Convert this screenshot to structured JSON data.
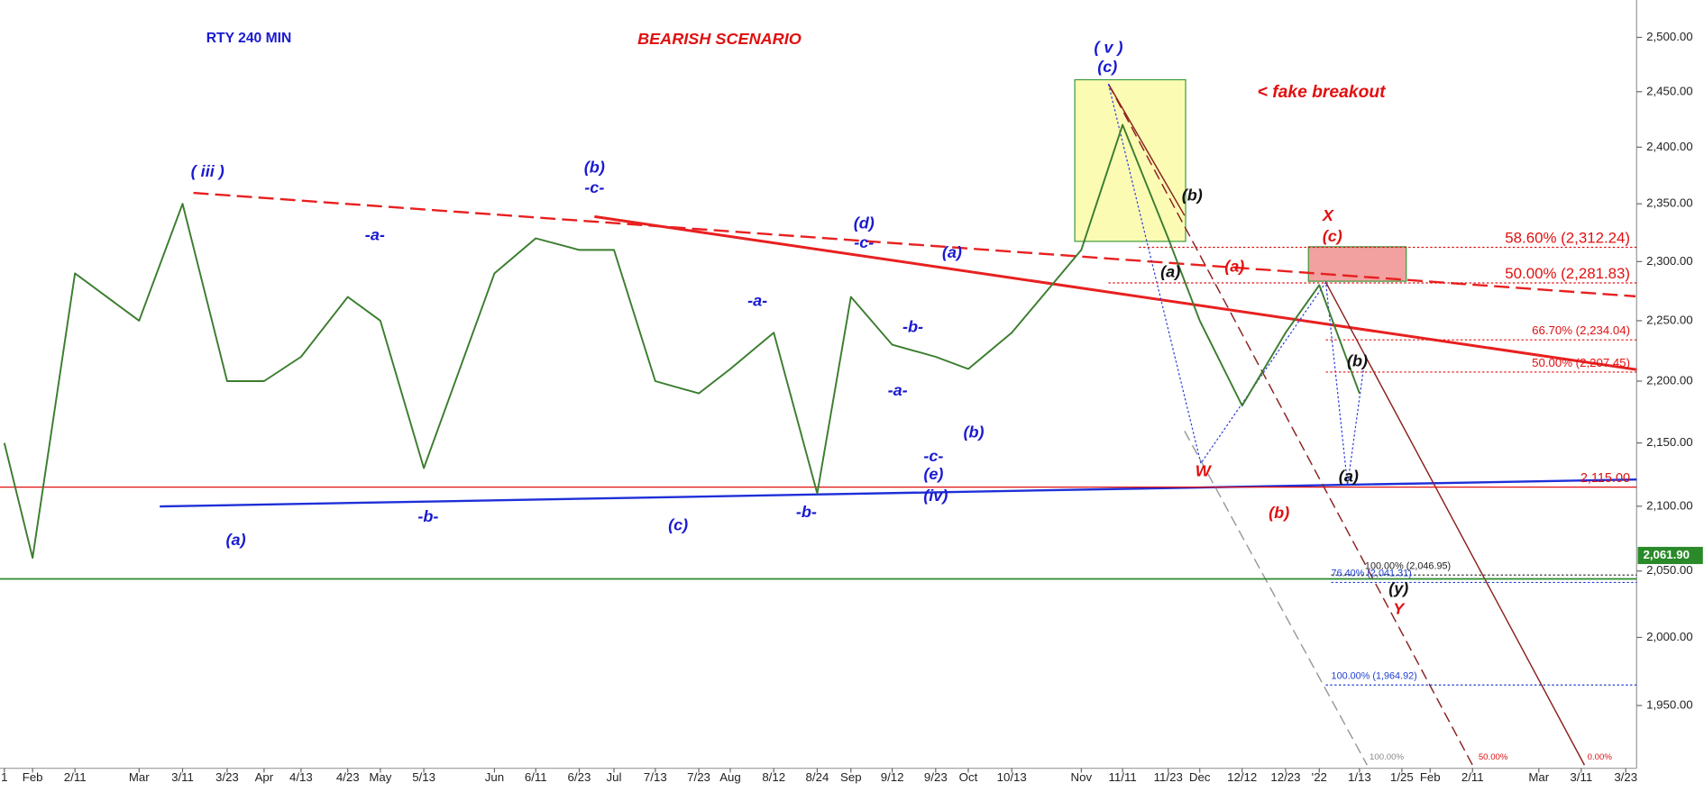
{
  "chart_data": {
    "type": "line",
    "title": "RTY 240 MIN",
    "subtitle": "BEARISH SCENARIO",
    "log_scale": true,
    "grid": false,
    "color": "#3b7d2e",
    "categories": [
      "1",
      "Feb",
      "2/11",
      "Mar",
      "3/11",
      "3/23",
      "Apr",
      "4/13",
      "4/23",
      "May",
      "5/13",
      "Jun",
      "6/11",
      "6/23",
      "Jul",
      "7/13",
      "7/23",
      "Aug",
      "8/12",
      "8/24",
      "Sep",
      "9/12",
      "9/23",
      "Oct",
      "10/13",
      "Nov",
      "11/11",
      "11/23",
      "Dec",
      "12/12",
      "12/23",
      "'22",
      "1/13",
      "1/25",
      "Feb",
      "2/11",
      "Mar",
      "3/11",
      "3/23"
    ],
    "values": [
      2150,
      2060,
      2290,
      2250,
      2350,
      2200,
      2200,
      2220,
      2270,
      2250,
      2130,
      2290,
      2320,
      2310,
      2310,
      2200,
      2190,
      2210,
      2240,
      2110,
      2270,
      2230,
      2220,
      2210,
      2240,
      2310,
      2420,
      2320,
      2250,
      2180,
      2240,
      2280,
      2190,
      null,
      null,
      null,
      null,
      null,
      null
    ],
    "ylim": [
      1905,
      2535
    ],
    "yticks": [
      {
        "value": 1950,
        "label": "1,950.00"
      },
      {
        "value": 2000,
        "label": "2,000.00"
      },
      {
        "value": 2050,
        "label": "2,050.00"
      },
      {
        "value": 2100,
        "label": "2,100.00"
      },
      {
        "value": 2150,
        "label": "2,150.00"
      },
      {
        "value": 2200,
        "label": "2,200.00"
      },
      {
        "value": 2250,
        "label": "2,250.00"
      },
      {
        "value": 2300,
        "label": "2,300.00"
      },
      {
        "value": 2350,
        "label": "2,350.00"
      },
      {
        "value": 2400,
        "label": "2,400.00"
      },
      {
        "value": 2450,
        "label": "2,450.00"
      },
      {
        "value": 2500,
        "label": "2,500.00"
      }
    ],
    "last_price": {
      "value": 2061.9,
      "label": "2,061.90",
      "color": "#2a8a2a"
    },
    "support_line": {
      "value": 2044,
      "color": "#2a8a2a"
    },
    "levels": [
      {
        "value": 2312.24,
        "label": "58.60% (2,312.24)",
        "color": "#e01010"
      },
      {
        "value": 2281.83,
        "label": "50.00% (2,281.83)",
        "color": "#e01010"
      },
      {
        "value": 2234.04,
        "label": "66.70% (2,234.04)",
        "color": "#e01010"
      },
      {
        "value": 2207.45,
        "label": "50.00% (2,207.45)",
        "color": "#e01010"
      },
      {
        "value": 2115,
        "label": "2,115.00",
        "color": "#e01010"
      },
      {
        "value": 2046.95,
        "label": "100.00% (2,046.95)",
        "color": "#222222"
      },
      {
        "value": 2041.31,
        "label": "76.40% (2,041.31)",
        "color": "#1f3fd0"
      },
      {
        "value": 1964.92,
        "label": "100.00% (1,964.92)",
        "color": "#1f3fd0"
      }
    ],
    "annotations": [
      {
        "text": "( iii )",
        "color": "#1a1ad0"
      },
      {
        "text": "(a)",
        "color": "#1a1ad0"
      },
      {
        "text": "-a-",
        "color": "#1a1ad0"
      },
      {
        "text": "-b-",
        "color": "#1a1ad0"
      },
      {
        "text": "(b)",
        "color": "#1a1ad0"
      },
      {
        "text": "-c-",
        "color": "#1a1ad0"
      },
      {
        "text": "(c)",
        "color": "#1a1ad0"
      },
      {
        "text": "-a-",
        "color": "#1a1ad0"
      },
      {
        "text": "-b-",
        "color": "#1a1ad0"
      },
      {
        "text": "(d)",
        "color": "#1a1ad0"
      },
      {
        "text": "-c-",
        "color": "#1a1ad0"
      },
      {
        "text": "(a)",
        "color": "#1a1ad0"
      },
      {
        "text": "-b-",
        "color": "#1a1ad0"
      },
      {
        "text": "-a-",
        "color": "#1a1ad0"
      },
      {
        "text": "(b)",
        "color": "#1a1ad0"
      },
      {
        "text": "-c-",
        "color": "#1a1ad0"
      },
      {
        "text": "(e)",
        "color": "#1a1ad0"
      },
      {
        "text": "(iv)",
        "color": "#1a1ad0"
      },
      {
        "text": "( v )",
        "color": "#1a1ad0"
      },
      {
        "text": "(c)",
        "color": "#1a1ad0"
      },
      {
        "text": "< fake breakout",
        "color": "#e01010"
      },
      {
        "text": "(b)",
        "color": "#111111"
      },
      {
        "text": "(a)",
        "color": "#111111"
      },
      {
        "text": "(a)",
        "color": "#e01010"
      },
      {
        "text": "X",
        "color": "#e01010"
      },
      {
        "text": "(c)",
        "color": "#e01010"
      },
      {
        "text": "W",
        "color": "#e01010"
      },
      {
        "text": "(b)",
        "color": "#e01010"
      },
      {
        "text": "(b)",
        "color": "#111111"
      },
      {
        "text": "(a)",
        "color": "#111111"
      },
      {
        "text": "(y)",
        "color": "#111111"
      },
      {
        "text": "Y",
        "color": "#e01010"
      },
      {
        "text": "100.00%",
        "color": "#888888"
      },
      {
        "text": "50.00%",
        "color": "#e01010"
      },
      {
        "text": "0.00%",
        "color": "#e01010"
      }
    ]
  }
}
